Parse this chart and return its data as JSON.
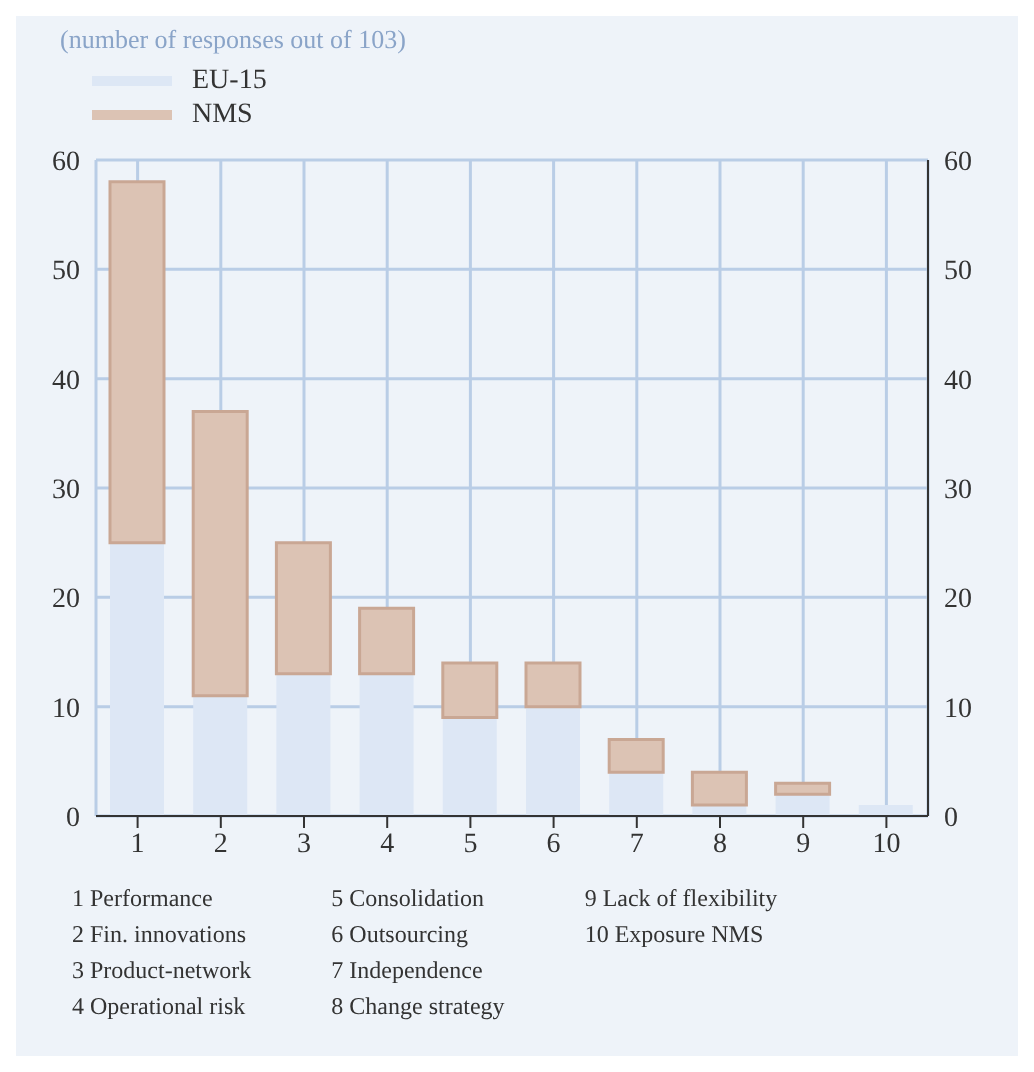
{
  "chart_data": {
    "type": "bar",
    "title": "(number of responses out of 103)",
    "categories": [
      "1",
      "2",
      "3",
      "4",
      "5",
      "6",
      "7",
      "8",
      "9",
      "10"
    ],
    "stacked": true,
    "series": [
      {
        "name": "EU-15",
        "color": "#dde7f5",
        "values": [
          25,
          11,
          13,
          13,
          9,
          10,
          4,
          1,
          2,
          1
        ]
      },
      {
        "name": "NMS",
        "color": "#dcc3b4",
        "values": [
          33,
          26,
          12,
          6,
          5,
          4,
          3,
          3,
          1,
          0
        ]
      }
    ],
    "ylim": [
      0,
      60
    ],
    "yticks": [
      0,
      10,
      20,
      30,
      40,
      50,
      60
    ],
    "y2lim": [
      0,
      60
    ],
    "y2ticks": [
      0,
      10,
      20,
      30,
      40,
      50,
      60
    ],
    "grid": true,
    "legend": "top left",
    "annotations": [
      "1 Performance",
      "2 Fin. innovations",
      "3 Product-network",
      "4 Operational risk",
      "5 Consolidation",
      "6 Outsourcing",
      "7 Independence",
      "8 Change strategy",
      "9 Lack of flexibility",
      "10 Exposure NMS"
    ]
  }
}
